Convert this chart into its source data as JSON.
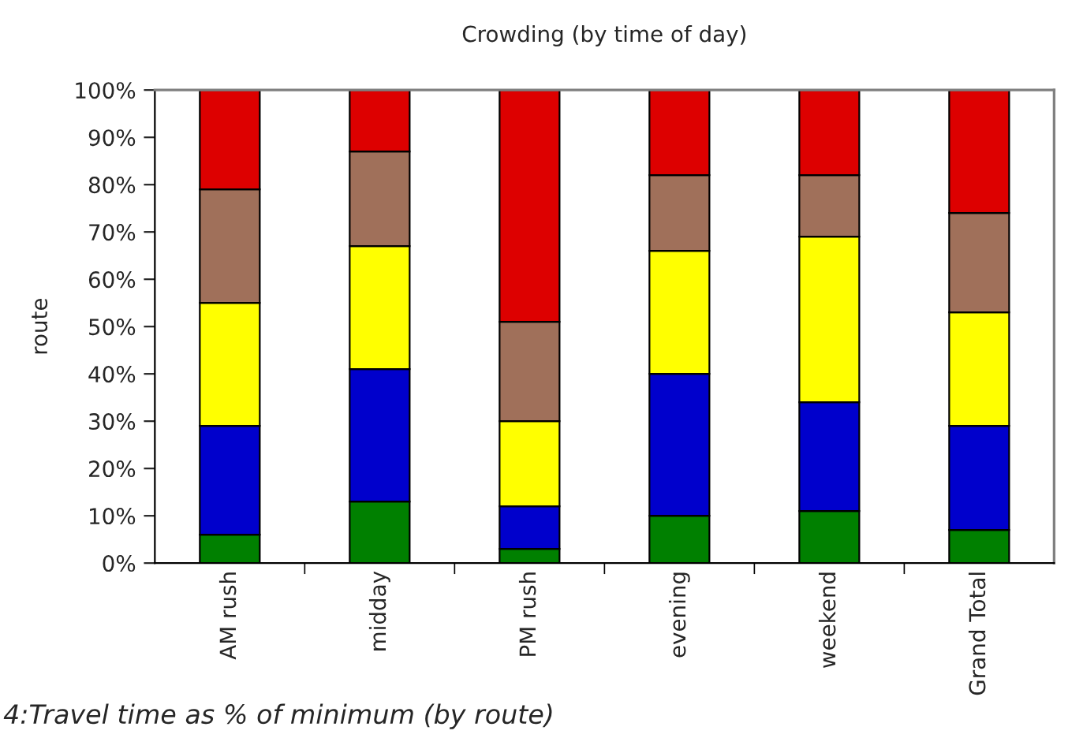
{
  "chart_data": {
    "type": "bar",
    "title": "Crowding (by time of day)",
    "ylabel": "route",
    "stacked": true,
    "categories": [
      "AM rush",
      "midday",
      "PM rush",
      "evening",
      "weekend",
      "Grand Total"
    ],
    "series": [
      {
        "color": "#008000",
        "values": [
          6,
          13,
          3,
          10,
          11,
          7
        ]
      },
      {
        "color": "#0000cc",
        "values": [
          23,
          28,
          9,
          30,
          23,
          22
        ]
      },
      {
        "color": "#ffff00",
        "values": [
          26,
          26,
          18,
          26,
          35,
          24
        ]
      },
      {
        "color": "#a0705a",
        "values": [
          24,
          20,
          21,
          16,
          13,
          21
        ]
      },
      {
        "color": "#dd0000",
        "values": [
          21,
          13,
          49,
          18,
          18,
          26
        ]
      }
    ],
    "ylim": [
      0,
      100
    ],
    "yticks": [
      {
        "value": 0,
        "label": "0%"
      },
      {
        "value": 10,
        "label": "10%"
      },
      {
        "value": 20,
        "label": "20%"
      },
      {
        "value": 30,
        "label": "30%"
      },
      {
        "value": 40,
        "label": "40%"
      },
      {
        "value": 50,
        "label": "50%"
      },
      {
        "value": 60,
        "label": "60%"
      },
      {
        "value": 70,
        "label": "70%"
      },
      {
        "value": 80,
        "label": "80%"
      },
      {
        "value": 90,
        "label": "90%"
      },
      {
        "value": 100,
        "label": "100%"
      }
    ],
    "annotations": [
      "4:Travel time as % of minimum (by route)"
    ]
  }
}
